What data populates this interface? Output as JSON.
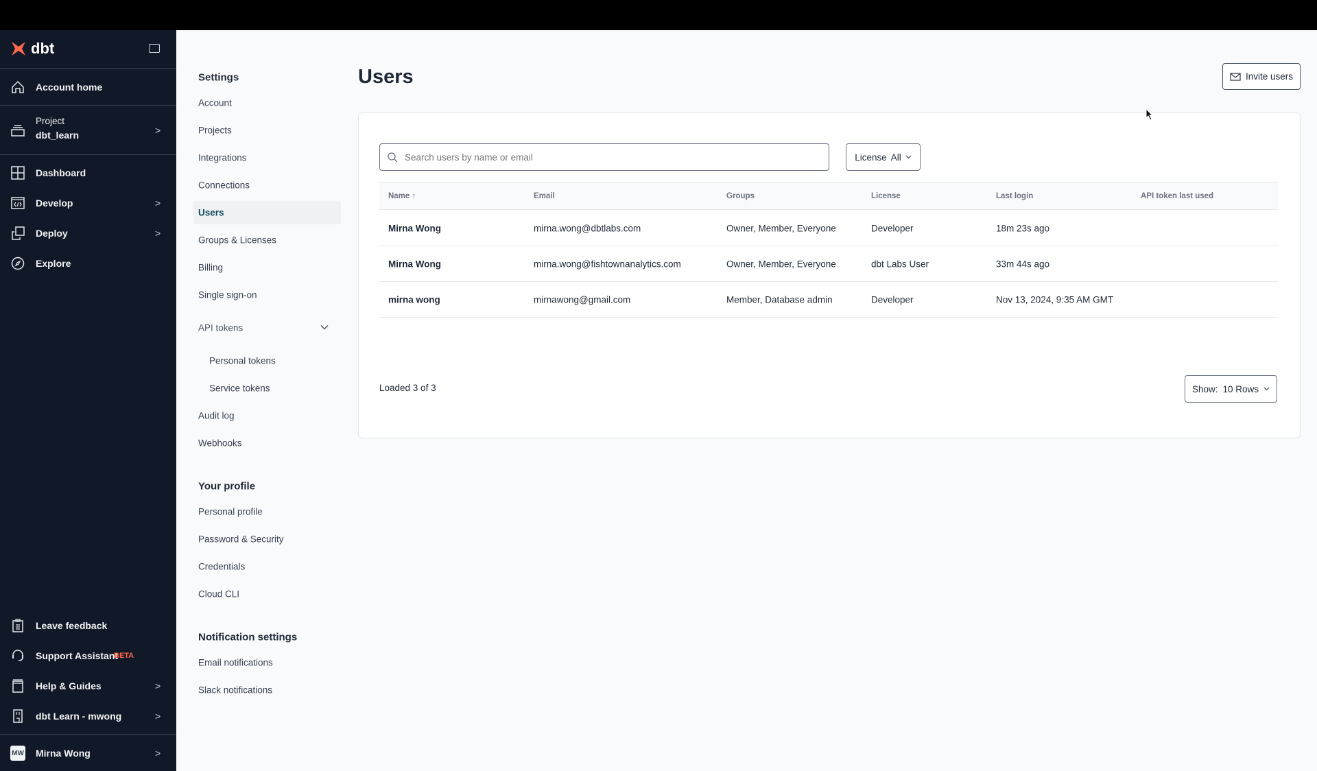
{
  "brand": {
    "logo_text": "dbt",
    "accent": "#ff694a"
  },
  "sidebar": {
    "account_home": "Account home",
    "project_label": "Project",
    "project_name": "dbt_learn",
    "items": [
      {
        "label": "Dashboard",
        "icon": "dashboard-icon"
      },
      {
        "label": "Develop",
        "icon": "code-icon"
      },
      {
        "label": "Deploy",
        "icon": "deploy-icon"
      },
      {
        "label": "Explore",
        "icon": "compass-icon"
      }
    ],
    "bottom": [
      {
        "label": "Leave feedback"
      },
      {
        "label": "Support Assistant",
        "badge": "BETA"
      },
      {
        "label": "Help & Guides"
      },
      {
        "label": "dbt Learn - mwong"
      }
    ],
    "user": {
      "initials": "MW",
      "name": "Mirna Wong"
    }
  },
  "settings_nav": {
    "heading": "Settings",
    "items": [
      "Account",
      "Projects",
      "Integrations",
      "Connections",
      "Users",
      "Groups & Licenses",
      "Billing",
      "Single sign-on"
    ],
    "api_tokens": "API tokens",
    "api_sub": [
      "Personal tokens",
      "Service tokens"
    ],
    "more": [
      "Audit log",
      "Webhooks"
    ],
    "profile_heading": "Your profile",
    "profile_items": [
      "Personal profile",
      "Password & Security",
      "Credentials",
      "Cloud CLI"
    ],
    "notif_heading": "Notification settings",
    "notif_items": [
      "Email notifications",
      "Slack notifications"
    ],
    "active": "Users"
  },
  "main": {
    "title": "Users",
    "invite_label": "Invite users",
    "search_placeholder": "Search users by name or email",
    "license_filter": {
      "label": "License",
      "value": "All"
    },
    "columns": [
      "Name",
      "Email",
      "Groups",
      "License",
      "Last login",
      "API token last used"
    ],
    "rows": [
      [
        "Mirna Wong",
        "mirna.wong@dbtlabs.com",
        "Owner, Member, Everyone",
        "Developer",
        "18m 23s ago",
        ""
      ],
      [
        "Mirna Wong",
        "mirna.wong@fishtownanalytics.com",
        "Owner, Member, Everyone",
        "dbt Labs User",
        "33m 44s ago",
        ""
      ],
      [
        "mirna wong",
        "mirnawong@gmail.com",
        "Member, Database admin",
        "Developer",
        "Nov 13, 2024, 9:35 AM GMT",
        ""
      ]
    ],
    "loaded": "Loaded 3 of 3",
    "show_label": "Show:",
    "show_value": "10 Rows"
  }
}
